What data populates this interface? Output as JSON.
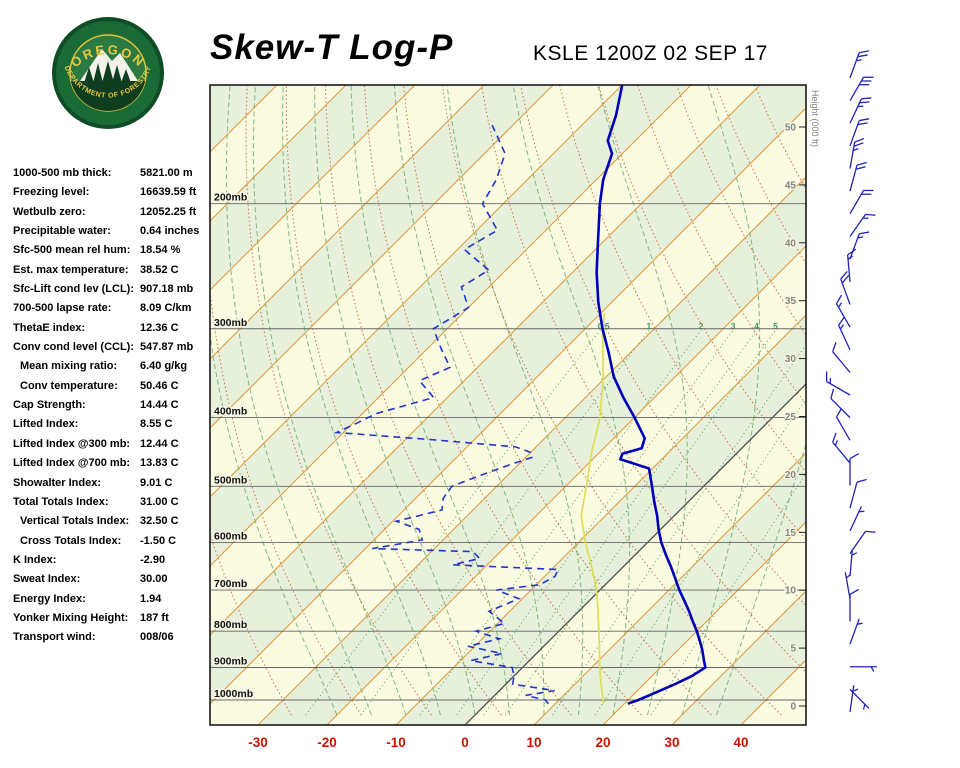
{
  "header": {
    "title": "Skew-T Log-P",
    "station": "KSLE 1200Z 02 SEP 17"
  },
  "logo": {
    "top_text": "OREGON",
    "bottom_text": "DEPARTMENT OF FORESTRY"
  },
  "stats": [
    {
      "label": "1000-500 mb thick:",
      "value": "5821.00 m",
      "indent": false
    },
    {
      "label": "Freezing level:",
      "value": "16639.59 ft",
      "indent": false
    },
    {
      "label": "Wetbulb zero:",
      "value": "12052.25 ft",
      "indent": false
    },
    {
      "label": "Precipitable water:",
      "value": "0.64 inches",
      "indent": false
    },
    {
      "label": "Sfc-500 mean rel hum:",
      "value": "18.54 %",
      "indent": false
    },
    {
      "label": "Est. max temperature:",
      "value": "38.52 C",
      "indent": false
    },
    {
      "label": "Sfc-Lift cond lev (LCL):",
      "value": "907.18 mb",
      "indent": false
    },
    {
      "label": "700-500 lapse rate:",
      "value": "8.09 C/km",
      "indent": false
    },
    {
      "label": "ThetaE index:",
      "value": "12.36 C",
      "indent": false
    },
    {
      "label": "Conv cond level (CCL):",
      "value": "547.87 mb",
      "indent": false
    },
    {
      "label": "Mean mixing ratio:",
      "value": "6.40 g/kg",
      "indent": true
    },
    {
      "label": "Conv temperature:",
      "value": "50.46 C",
      "indent": true
    },
    {
      "label": "Cap Strength:",
      "value": "14.44 C",
      "indent": false
    },
    {
      "label": "Lifted Index:",
      "value": "8.55 C",
      "indent": false
    },
    {
      "label": "Lifted Index @300 mb:",
      "value": "12.44 C",
      "indent": false
    },
    {
      "label": "Lifted Index @700 mb:",
      "value": "13.83 C",
      "indent": false
    },
    {
      "label": "Showalter Index:",
      "value": "9.01 C",
      "indent": false
    },
    {
      "label": "Total Totals Index:",
      "value": "31.00 C",
      "indent": false
    },
    {
      "label": "Vertical Totals Index:",
      "value": "32.50 C",
      "indent": true
    },
    {
      "label": "Cross Totals Index:",
      "value": "-1.50 C",
      "indent": true
    },
    {
      "label": "K Index:",
      "value": "-2.90",
      "indent": false
    },
    {
      "label": "Sweat Index:",
      "value": "30.00",
      "indent": false
    },
    {
      "label": "Energy Index:",
      "value": "1.94",
      "indent": false
    },
    {
      "label": "Yonker Mixing Height:",
      "value": "187 ft",
      "indent": false
    },
    {
      "label": "Transport wind:",
      "value": "008/06",
      "indent": false
    }
  ],
  "chart_data": {
    "type": "skewt-log-p",
    "title": "Skew-T Log-P",
    "station_time": "KSLE 1200Z 02 SEP 17",
    "x_axis": {
      "ticks": [
        -30,
        -20,
        -10,
        0,
        10,
        20,
        30,
        40
      ],
      "unit": "C"
    },
    "pressure_lines_mb": [
      200,
      300,
      400,
      500,
      600,
      700,
      800,
      900,
      1000
    ],
    "pressure_label_suffix": "mb",
    "height_axis": {
      "label": "Height (000 ft)",
      "ticks": [
        0,
        5,
        10,
        15,
        20,
        25,
        30,
        35,
        40,
        45,
        50
      ]
    },
    "isotherm_range_c": [
      -120,
      50
    ],
    "isotherm_step_c": 10,
    "dry_adiabats_c": [
      -30,
      -20,
      -10,
      0,
      10,
      20,
      30,
      40,
      50,
      60,
      70,
      80,
      90,
      100,
      110,
      120
    ],
    "moist_adiabats_c": [
      -20,
      -15,
      -10,
      -5,
      0,
      5,
      10,
      15,
      20,
      25,
      30,
      35
    ],
    "mixing_ratio_g_kg": [
      0.5,
      1,
      2,
      3,
      4,
      5,
      8,
      12,
      20
    ],
    "temperature_profile_p_t": [
      [
        1012,
        20.5
      ],
      [
        1000,
        21.5
      ],
      [
        975,
        23
      ],
      [
        950,
        24.5
      ],
      [
        925,
        25.8
      ],
      [
        900,
        26.5
      ],
      [
        875,
        25
      ],
      [
        850,
        23.5
      ],
      [
        825,
        21.8
      ],
      [
        800,
        20
      ],
      [
        775,
        18
      ],
      [
        750,
        16
      ],
      [
        725,
        13.8
      ],
      [
        700,
        11.5
      ],
      [
        675,
        9.3
      ],
      [
        650,
        7
      ],
      [
        625,
        4.5
      ],
      [
        600,
        2
      ],
      [
        575,
        -0.3
      ],
      [
        550,
        -2.5
      ],
      [
        525,
        -5
      ],
      [
        500,
        -7.5
      ],
      [
        472,
        -10.5
      ],
      [
        458,
        -16
      ],
      [
        450,
        -16.5
      ],
      [
        442,
        -14.5
      ],
      [
        428,
        -15.5
      ],
      [
        400,
        -20
      ],
      [
        375,
        -24.5
      ],
      [
        350,
        -29
      ],
      [
        325,
        -33
      ],
      [
        300,
        -37.5
      ],
      [
        275,
        -42
      ],
      [
        250,
        -46.5
      ],
      [
        225,
        -51
      ],
      [
        200,
        -56
      ],
      [
        185,
        -59
      ],
      [
        170,
        -61.5
      ],
      [
        163,
        -64
      ],
      [
        150,
        -66.5
      ],
      [
        136,
        -70
      ]
    ],
    "dewpoint_profile_p_t": [
      [
        1012,
        9
      ],
      [
        1000,
        8
      ],
      [
        985,
        4.5
      ],
      [
        970,
        8
      ],
      [
        950,
        1
      ],
      [
        925,
        0
      ],
      [
        900,
        -1.5
      ],
      [
        880,
        -8.5
      ],
      [
        860,
        -5
      ],
      [
        840,
        -11
      ],
      [
        820,
        -7.5
      ],
      [
        800,
        -12
      ],
      [
        780,
        -9
      ],
      [
        750,
        -13
      ],
      [
        720,
        -10.5
      ],
      [
        700,
        -15
      ],
      [
        688,
        -9.5
      ],
      [
        670,
        -8.5
      ],
      [
        655,
        -9
      ],
      [
        645,
        -25
      ],
      [
        632,
        -22
      ],
      [
        618,
        -24
      ],
      [
        612,
        -39
      ],
      [
        595,
        -33
      ],
      [
        575,
        -35
      ],
      [
        560,
        -39.5
      ],
      [
        540,
        -34.5
      ],
      [
        520,
        -36
      ],
      [
        500,
        -36.5
      ],
      [
        480,
        -33.5
      ],
      [
        465,
        -31
      ],
      [
        455,
        -29
      ],
      [
        448,
        -30
      ],
      [
        440,
        -33
      ],
      [
        430,
        -46
      ],
      [
        420,
        -61
      ],
      [
        408,
        -59.5
      ],
      [
        395,
        -58
      ],
      [
        375,
        -52
      ],
      [
        355,
        -56.5
      ],
      [
        340,
        -54
      ],
      [
        320,
        -58
      ],
      [
        300,
        -62
      ],
      [
        280,
        -60
      ],
      [
        262,
        -64
      ],
      [
        248,
        -62.5
      ],
      [
        232,
        -69
      ],
      [
        218,
        -67
      ],
      [
        200,
        -73
      ],
      [
        185,
        -74.5
      ],
      [
        170,
        -77
      ],
      [
        155,
        -83
      ]
    ],
    "parcel_profile_p_t": [
      [
        1012,
        17
      ],
      [
        950,
        13.8
      ],
      [
        900,
        11.2
      ],
      [
        850,
        8.6
      ],
      [
        800,
        5.8
      ],
      [
        750,
        2.8
      ],
      [
        700,
        -0.5
      ],
      [
        650,
        -4.5
      ],
      [
        600,
        -9
      ],
      [
        550,
        -13.5
      ],
      [
        500,
        -17
      ],
      [
        450,
        -21
      ],
      [
        400,
        -25
      ],
      [
        350,
        -30.5
      ],
      [
        300,
        -37.5
      ],
      [
        285,
        -39.5
      ]
    ],
    "wind_barbs_top_to_bottom": [
      {
        "dir": 20,
        "spd": 25
      },
      {
        "dir": 30,
        "spd": 30
      },
      {
        "dir": 25,
        "spd": 25
      },
      {
        "dir": 20,
        "spd": 20
      },
      {
        "dir": 10,
        "spd": 25
      },
      {
        "dir": 15,
        "spd": 20
      },
      {
        "dir": 30,
        "spd": 20
      },
      {
        "dir": 35,
        "spd": 15
      },
      {
        "dir": 20,
        "spd": 15
      },
      {
        "dir": 355,
        "spd": 15
      },
      {
        "dir": 340,
        "spd": 20
      },
      {
        "dir": 330,
        "spd": 15
      },
      {
        "dir": 335,
        "spd": 15
      },
      {
        "dir": 320,
        "spd": 10
      },
      {
        "dir": 300,
        "spd": 15
      },
      {
        "dir": 315,
        "spd": 10
      },
      {
        "dir": 330,
        "spd": 10
      },
      {
        "dir": 320,
        "spd": 15
      },
      {
        "dir": 0,
        "spd": 10
      },
      {
        "dir": 15,
        "spd": 10
      },
      {
        "dir": 25,
        "spd": 5
      },
      {
        "dir": 35,
        "spd": 10
      },
      {
        "dir": 5,
        "spd": 5
      },
      {
        "dir": 350,
        "spd": 5
      },
      {
        "dir": 0,
        "spd": 10
      },
      {
        "dir": 20,
        "spd": 5
      },
      {
        "dir": 90,
        "spd": 5
      },
      {
        "dir": 135,
        "spd": 5
      },
      {
        "dir": 8,
        "spd": 6
      }
    ],
    "colors": {
      "isotherm": "#e0973c",
      "zero_isotherm": "#444444",
      "dry_adiabat": "#c87048",
      "moist_adiabat": "#7cb87c",
      "mixing_ratio": "#3a9a50",
      "temperature": "#0000b8",
      "dewpoint": "#2233cc",
      "parcel": "#dede55",
      "band_cream": "#fbfbe2",
      "band_green": "#e6f0da",
      "pressure_line": "#666666",
      "axis_red": "#cc1100",
      "height_text": "#85857a",
      "barb": "#2222bb",
      "border": "#1a1a1a"
    }
  }
}
